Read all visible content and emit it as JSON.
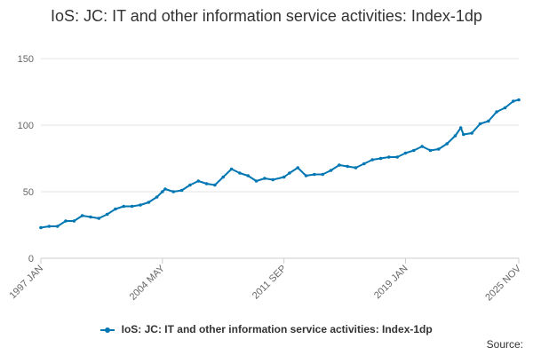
{
  "chart_data": {
    "type": "line",
    "title": "IoS: JC: IT and other information service activities: Index-1dp",
    "xlabel": "",
    "ylabel": "",
    "ylim": [
      0,
      150
    ],
    "yticks": [
      0,
      50,
      100,
      150
    ],
    "x_tick_labels": [
      "1997 JAN",
      "2004 MAY",
      "2011 SEP",
      "2019 JAN",
      "2025 NOV"
    ],
    "x_tick_positions_in_months_from_start": [
      0,
      88,
      176,
      264,
      346
    ],
    "grid": true,
    "legend_position": "bottom",
    "series": [
      {
        "name": "IoS: JC: IT and other information service activities: Index-1dp",
        "color": "#0077b3",
        "points": [
          {
            "x": "1997 JAN",
            "y": 23
          },
          {
            "x": "1997 JUL",
            "y": 24
          },
          {
            "x": "1998 JAN",
            "y": 24
          },
          {
            "x": "1998 JUL",
            "y": 28
          },
          {
            "x": "1999 JAN",
            "y": 28
          },
          {
            "x": "1999 JUL",
            "y": 32
          },
          {
            "x": "2000 JAN",
            "y": 31
          },
          {
            "x": "2000 JUL",
            "y": 30
          },
          {
            "x": "2001 JAN",
            "y": 33
          },
          {
            "x": "2001 JUL",
            "y": 37
          },
          {
            "x": "2002 JAN",
            "y": 39
          },
          {
            "x": "2002 JUL",
            "y": 39
          },
          {
            "x": "2003 JAN",
            "y": 40
          },
          {
            "x": "2003 JUL",
            "y": 42
          },
          {
            "x": "2004 JAN",
            "y": 46
          },
          {
            "x": "2004 MAY",
            "y": 50
          },
          {
            "x": "2004 JUL",
            "y": 52
          },
          {
            "x": "2005 JAN",
            "y": 50
          },
          {
            "x": "2005 JUL",
            "y": 51
          },
          {
            "x": "2006 JAN",
            "y": 55
          },
          {
            "x": "2006 JUL",
            "y": 58
          },
          {
            "x": "2007 JAN",
            "y": 56
          },
          {
            "x": "2007 JUL",
            "y": 55
          },
          {
            "x": "2008 JAN",
            "y": 61
          },
          {
            "x": "2008 JUL",
            "y": 67
          },
          {
            "x": "2009 JAN",
            "y": 64
          },
          {
            "x": "2009 JUL",
            "y": 62
          },
          {
            "x": "2010 JAN",
            "y": 58
          },
          {
            "x": "2010 JUL",
            "y": 60
          },
          {
            "x": "2011 JAN",
            "y": 59
          },
          {
            "x": "2011 SEP",
            "y": 61
          },
          {
            "x": "2012 JAN",
            "y": 64
          },
          {
            "x": "2012 JUL",
            "y": 68
          },
          {
            "x": "2013 JAN",
            "y": 62
          },
          {
            "x": "2013 JUL",
            "y": 63
          },
          {
            "x": "2014 JAN",
            "y": 63
          },
          {
            "x": "2014 JUL",
            "y": 66
          },
          {
            "x": "2015 JAN",
            "y": 70
          },
          {
            "x": "2015 JUL",
            "y": 69
          },
          {
            "x": "2016 JAN",
            "y": 68
          },
          {
            "x": "2016 JUL",
            "y": 71
          },
          {
            "x": "2017 JAN",
            "y": 74
          },
          {
            "x": "2017 JUL",
            "y": 75
          },
          {
            "x": "2018 JAN",
            "y": 76
          },
          {
            "x": "2018 JUL",
            "y": 76
          },
          {
            "x": "2019 JAN",
            "y": 79
          },
          {
            "x": "2019 JUL",
            "y": 81
          },
          {
            "x": "2020 JAN",
            "y": 84
          },
          {
            "x": "2020 JUL",
            "y": 81
          },
          {
            "x": "2021 JAN",
            "y": 82
          },
          {
            "x": "2021 JUL",
            "y": 86
          },
          {
            "x": "2022 JAN",
            "y": 92
          },
          {
            "x": "2022 MAY",
            "y": 98
          },
          {
            "x": "2022 JUL",
            "y": 93
          },
          {
            "x": "2023 JAN",
            "y": 94
          },
          {
            "x": "2023 JUL",
            "y": 101
          },
          {
            "x": "2024 JAN",
            "y": 103
          },
          {
            "x": "2024 JUL",
            "y": 110
          },
          {
            "x": "2025 JAN",
            "y": 113
          },
          {
            "x": "2025 JUL",
            "y": 118
          },
          {
            "x": "2025 NOV",
            "y": 119
          }
        ]
      }
    ]
  },
  "legend_label": "IoS: JC: IT and other information service activities: Index-1dp",
  "source_label": "Source:"
}
